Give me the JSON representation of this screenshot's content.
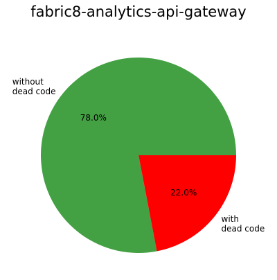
{
  "chart_data": {
    "type": "pie",
    "title": "fabric8-analytics-api-gateway",
    "slices": [
      {
        "label": [
          "with",
          "dead code"
        ],
        "value": 22.0,
        "pct_label": "22.0%",
        "color": "#ff0000"
      },
      {
        "label": [
          "without",
          "dead code"
        ],
        "value": 78.0,
        "pct_label": "78.0%",
        "color": "#43a043"
      }
    ],
    "start_angle_deg": 0,
    "direction": "clockwise",
    "legend": "none"
  }
}
